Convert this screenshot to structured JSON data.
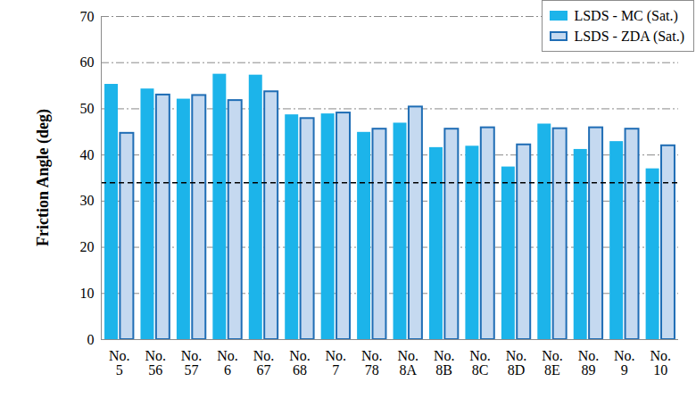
{
  "chart_data": {
    "type": "bar",
    "y_label": "Friction Angle (deg)",
    "categories": [
      "No. 5",
      "No. 56",
      "No. 57",
      "No. 6",
      "No. 67",
      "No. 68",
      "No. 7",
      "No. 78",
      "No. 8A",
      "No. 8B",
      "No. 8C",
      "No. 8D",
      "No. 8E",
      "No. 89",
      "No. 9",
      "No. 10"
    ],
    "series": [
      {
        "name": "LSDS - MC (Sat.)",
        "color": "#1cb4ea",
        "values": [
          55.3,
          54.3,
          52.1,
          57.5,
          57.3,
          48.7,
          48.9,
          44.9,
          46.9,
          41.6,
          41.9,
          37.4,
          46.7,
          41.2,
          42.9,
          37.0
        ]
      },
      {
        "name": "LSDS - ZDA (Sat.)",
        "color": "#c5d9f0",
        "values": [
          44.7,
          53.0,
          52.9,
          51.8,
          53.7,
          47.9,
          49.1,
          45.6,
          50.4,
          45.6,
          45.9,
          42.2,
          45.7,
          45.9,
          45.6,
          42.0
        ]
      }
    ],
    "ylim": [
      0,
      70
    ],
    "yticks": [
      0,
      10,
      20,
      30,
      40,
      50,
      60,
      70
    ],
    "reference_line": 34,
    "grid": true,
    "legend": "top-right"
  }
}
